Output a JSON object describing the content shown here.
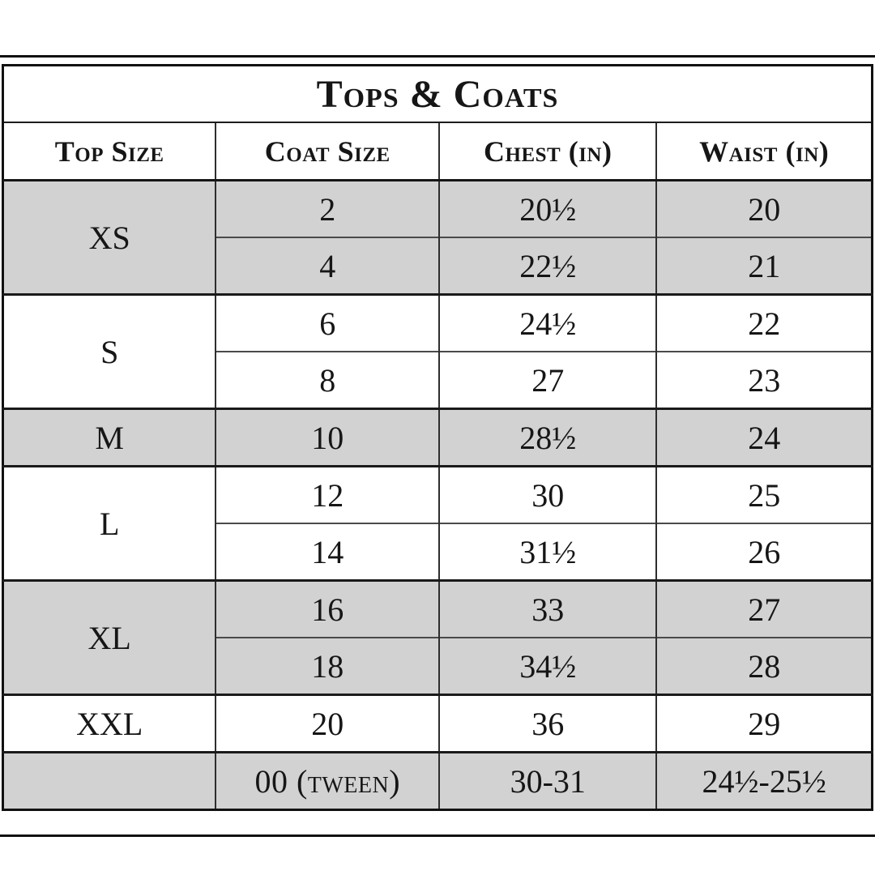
{
  "page": {
    "background": "#ffffff"
  },
  "colors": {
    "shaded_row": "#d2d2d2",
    "plain_row": "#ffffff",
    "border_heavy": "#161616",
    "border_light": "#4a4a4a",
    "text": "#161616"
  },
  "table": {
    "title": "Tops & Coats",
    "columns": [
      "Top Size",
      "Coat Size",
      "Chest (in)",
      "Waist (in)"
    ],
    "groups": [
      {
        "top_size": "XS",
        "shaded": true,
        "rows": [
          [
            "2",
            "20½",
            "20"
          ],
          [
            "4",
            "22½",
            "21"
          ]
        ]
      },
      {
        "top_size": "S",
        "shaded": false,
        "rows": [
          [
            "6",
            "24½",
            "22"
          ],
          [
            "8",
            "27",
            "23"
          ]
        ]
      },
      {
        "top_size": "M",
        "shaded": true,
        "rows": [
          [
            "10",
            "28½",
            "24"
          ]
        ]
      },
      {
        "top_size": "L",
        "shaded": false,
        "rows": [
          [
            "12",
            "30",
            "25"
          ],
          [
            "14",
            "31½",
            "26"
          ]
        ]
      },
      {
        "top_size": "XL",
        "shaded": true,
        "rows": [
          [
            "16",
            "33",
            "27"
          ],
          [
            "18",
            "34½",
            "28"
          ]
        ]
      },
      {
        "top_size": "XXL",
        "shaded": false,
        "rows": [
          [
            "20",
            "36",
            "29"
          ]
        ]
      },
      {
        "top_size": "",
        "shaded": true,
        "rows": [
          [
            "00 (tween)",
            "30-31",
            "24½-25½"
          ]
        ]
      }
    ]
  }
}
